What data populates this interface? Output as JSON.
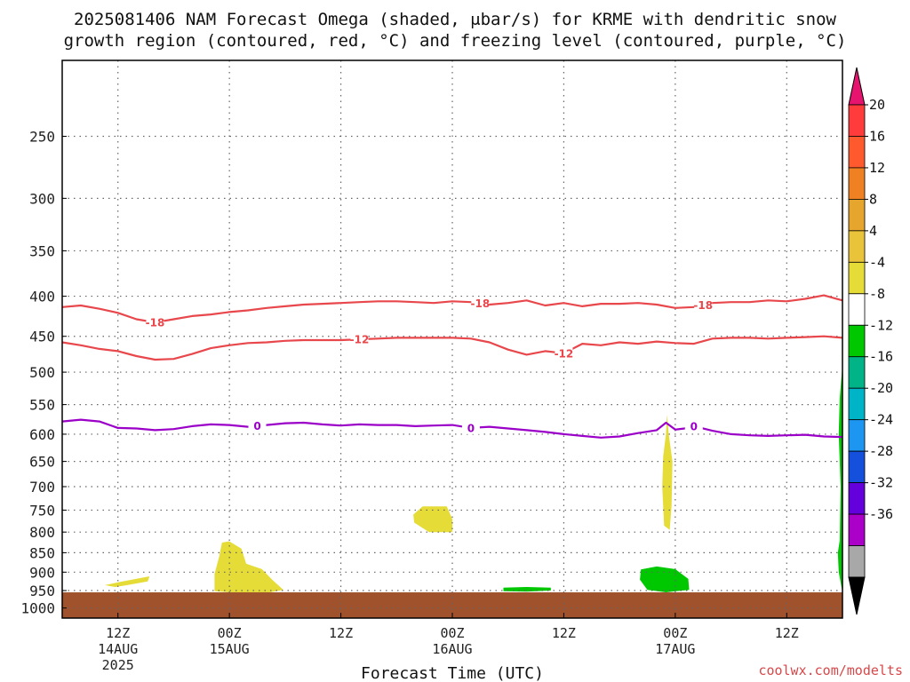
{
  "title_line1": "2025081406 NAM Forecast Omega (shaded, μbar/s) for KRME with dendritic snow",
  "title_line2": "growth region (contoured, red, °C) and freezing level (contoured, purple, °C)",
  "xlabel": "Forecast Time (UTC)",
  "credit": "coolwx.com/modelts",
  "colors": {
    "temp_contour": "#e8474c",
    "freezing_contour": "#9b00c8",
    "ground": "#a0522d",
    "omega_positive": "#e6dc37",
    "omega_negative": "#00c800"
  },
  "chart_data": {
    "type": "contour",
    "y_scale": "log-pressure",
    "y_unit": "hPa",
    "y_ticks": [
      250,
      300,
      350,
      400,
      450,
      500,
      550,
      600,
      650,
      700,
      750,
      800,
      850,
      900,
      950,
      1000
    ],
    "ylim": [
      1030,
      200
    ],
    "x_ticks": [
      {
        "hour": 6,
        "label": "12Z",
        "sub1": "14AUG",
        "sub2": "2025"
      },
      {
        "hour": 18,
        "label": "00Z",
        "sub1": "15AUG",
        "sub2": ""
      },
      {
        "hour": 30,
        "label": "12Z",
        "sub1": "",
        "sub2": ""
      },
      {
        "hour": 42,
        "label": "00Z",
        "sub1": "16AUG",
        "sub2": ""
      },
      {
        "hour": 54,
        "label": "12Z",
        "sub1": "",
        "sub2": ""
      },
      {
        "hour": 66,
        "label": "00Z",
        "sub1": "17AUG",
        "sub2": ""
      },
      {
        "hour": 78,
        "label": "12Z",
        "sub1": "",
        "sub2": ""
      }
    ],
    "xlim_hours": [
      0,
      84
    ],
    "grid": true,
    "ground_pressure": 955,
    "contours": [
      {
        "label": "-18",
        "color": "red",
        "points": [
          [
            0,
            413
          ],
          [
            2,
            411
          ],
          [
            4,
            415
          ],
          [
            6,
            420
          ],
          [
            8,
            428
          ],
          [
            10,
            432
          ],
          [
            12,
            428
          ],
          [
            14,
            424
          ],
          [
            16,
            422
          ],
          [
            18,
            419
          ],
          [
            20,
            417
          ],
          [
            22,
            414
          ],
          [
            24,
            412
          ],
          [
            26,
            410
          ],
          [
            28,
            409
          ],
          [
            30,
            408
          ],
          [
            32,
            407
          ],
          [
            34,
            406
          ],
          [
            36,
            406
          ],
          [
            38,
            407
          ],
          [
            40,
            408
          ],
          [
            42,
            406
          ],
          [
            44,
            407
          ],
          [
            46,
            410
          ],
          [
            48,
            408
          ],
          [
            50,
            405
          ],
          [
            52,
            411
          ],
          [
            54,
            408
          ],
          [
            56,
            412
          ],
          [
            58,
            409
          ],
          [
            60,
            409
          ],
          [
            62,
            408
          ],
          [
            64,
            410
          ],
          [
            66,
            414
          ],
          [
            68,
            413
          ],
          [
            70,
            408
          ],
          [
            72,
            407
          ],
          [
            74,
            407
          ],
          [
            76,
            405
          ],
          [
            78,
            406
          ],
          [
            80,
            403
          ],
          [
            82,
            399
          ],
          [
            84,
            405
          ]
        ],
        "label_hours": [
          10,
          45,
          69
        ]
      },
      {
        "label": "-12",
        "color": "red",
        "points": [
          [
            0,
            458
          ],
          [
            2,
            462
          ],
          [
            4,
            467
          ],
          [
            6,
            470
          ],
          [
            8,
            477
          ],
          [
            10,
            482
          ],
          [
            12,
            481
          ],
          [
            14,
            474
          ],
          [
            16,
            466
          ],
          [
            18,
            462
          ],
          [
            20,
            459
          ],
          [
            22,
            458
          ],
          [
            24,
            456
          ],
          [
            26,
            455
          ],
          [
            28,
            455
          ],
          [
            30,
            455
          ],
          [
            32,
            454
          ],
          [
            34,
            453
          ],
          [
            36,
            452
          ],
          [
            38,
            452
          ],
          [
            40,
            452
          ],
          [
            42,
            452
          ],
          [
            44,
            453
          ],
          [
            46,
            458
          ],
          [
            48,
            468
          ],
          [
            50,
            475
          ],
          [
            52,
            470
          ],
          [
            54,
            473
          ],
          [
            56,
            460
          ],
          [
            58,
            462
          ],
          [
            60,
            458
          ],
          [
            62,
            460
          ],
          [
            64,
            457
          ],
          [
            66,
            459
          ],
          [
            68,
            460
          ],
          [
            70,
            453
          ],
          [
            72,
            452
          ],
          [
            74,
            452
          ],
          [
            76,
            453
          ],
          [
            78,
            452
          ],
          [
            80,
            451
          ],
          [
            82,
            450
          ],
          [
            84,
            452
          ]
        ],
        "label_hours": [
          32,
          54
        ]
      },
      {
        "label": "0",
        "color": "purple",
        "points": [
          [
            0,
            578
          ],
          [
            2,
            575
          ],
          [
            4,
            578
          ],
          [
            6,
            589
          ],
          [
            8,
            590
          ],
          [
            10,
            593
          ],
          [
            12,
            591
          ],
          [
            14,
            586
          ],
          [
            16,
            583
          ],
          [
            18,
            584
          ],
          [
            20,
            587
          ],
          [
            22,
            584
          ],
          [
            24,
            581
          ],
          [
            26,
            580
          ],
          [
            28,
            583
          ],
          [
            30,
            585
          ],
          [
            32,
            583
          ],
          [
            34,
            584
          ],
          [
            36,
            584
          ],
          [
            38,
            586
          ],
          [
            40,
            585
          ],
          [
            42,
            584
          ],
          [
            44,
            589
          ],
          [
            46,
            587
          ],
          [
            48,
            590
          ],
          [
            50,
            593
          ],
          [
            52,
            596
          ],
          [
            54,
            600
          ],
          [
            56,
            603
          ],
          [
            58,
            606
          ],
          [
            60,
            604
          ],
          [
            62,
            598
          ],
          [
            64,
            593
          ],
          [
            65,
            580
          ],
          [
            66,
            592
          ],
          [
            67,
            590
          ],
          [
            68,
            586
          ],
          [
            70,
            594
          ],
          [
            72,
            600
          ],
          [
            74,
            602
          ],
          [
            76,
            603
          ],
          [
            78,
            602
          ],
          [
            80,
            601
          ],
          [
            82,
            604
          ],
          [
            84,
            605
          ]
        ],
        "label_hours": [
          21,
          44,
          68
        ]
      }
    ],
    "omega_regions": [
      {
        "sign": "positive",
        "points": [
          [
            4.6,
            935
          ],
          [
            6.5,
            925
          ],
          [
            9.4,
            911
          ],
          [
            9.2,
            925
          ],
          [
            7,
            935
          ],
          [
            5.7,
            940
          ]
        ]
      },
      {
        "sign": "positive",
        "points": [
          [
            17.2,
            825
          ],
          [
            18,
            822
          ],
          [
            19.3,
            840
          ],
          [
            19.8,
            878
          ],
          [
            21.5,
            892
          ],
          [
            22.6,
            920
          ],
          [
            23.8,
            948
          ],
          [
            22,
            957
          ],
          [
            18,
            955
          ],
          [
            16.4,
            952
          ],
          [
            16.4,
            905
          ],
          [
            16.9,
            860
          ]
        ]
      },
      {
        "sign": "positive",
        "points": [
          [
            38.8,
            742
          ],
          [
            41.4,
            742
          ],
          [
            42,
            770
          ],
          [
            42,
            800
          ],
          [
            39.5,
            800
          ],
          [
            37.9,
            778
          ],
          [
            37.8,
            760
          ]
        ]
      },
      {
        "sign": "positive",
        "points": [
          [
            65.1,
            566
          ],
          [
            65.3,
            600
          ],
          [
            65.7,
            650
          ],
          [
            65.6,
            740
          ],
          [
            65.4,
            795
          ],
          [
            64.8,
            785
          ],
          [
            64.6,
            700
          ],
          [
            64.7,
            640
          ],
          [
            65,
            600
          ]
        ]
      },
      {
        "sign": "negative",
        "points": [
          [
            47.5,
            942
          ],
          [
            50,
            940
          ],
          [
            52.6,
            942
          ],
          [
            52.6,
            950
          ],
          [
            50,
            953
          ],
          [
            47.5,
            952
          ]
        ]
      },
      {
        "sign": "negative",
        "points": [
          [
            62.3,
            893
          ],
          [
            64,
            885
          ],
          [
            66,
            892
          ],
          [
            67.4,
            918
          ],
          [
            67.5,
            948
          ],
          [
            65,
            955
          ],
          [
            63,
            948
          ],
          [
            62.2,
            920
          ]
        ]
      },
      {
        "sign": "negative",
        "points": [
          [
            84,
            490
          ],
          [
            84,
            955
          ],
          [
            83.6,
            900
          ],
          [
            83.5,
            850
          ],
          [
            83.7,
            820
          ],
          [
            83.8,
            700
          ],
          [
            83.6,
            600
          ],
          [
            83.7,
            540
          ]
        ]
      }
    ],
    "colorbar": {
      "min_label": "-36",
      "max_label": "20",
      "boundaries": [
        "20",
        "16",
        "12",
        "8",
        "4",
        "-4",
        "-8",
        "-12",
        "-16",
        "-20",
        "-24",
        "-28",
        "-32",
        "-36"
      ],
      "colors": [
        "#ff3b3b",
        "#ff5a2d",
        "#ef8122",
        "#e6a52c",
        "#e9c33a",
        "#e6dc37",
        "#ffffff",
        "#00c800",
        "#00b488",
        "#00b4c8",
        "#1c96f0",
        "#1450dc",
        "#6400dc",
        "#aa00c8",
        "#a8a8a8"
      ],
      "top_triangle_color": "#e6146e",
      "bottom_triangle_color": "#000000"
    }
  }
}
